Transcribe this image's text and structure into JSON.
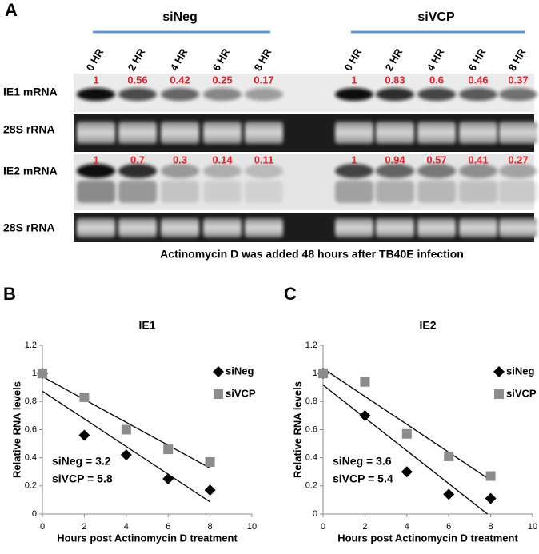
{
  "panel_a": {
    "label": "A",
    "groups": [
      {
        "name": "siNeg",
        "lanes": [
          "0 HR",
          "2 HR",
          "4 HR",
          "6 HR",
          "8 HR"
        ],
        "ie1_levels": [
          1,
          0.56,
          0.42,
          0.25,
          0.17
        ],
        "ie2_levels": [
          1,
          0.7,
          0.3,
          0.14,
          0.11
        ]
      },
      {
        "name": "siVCP",
        "lanes": [
          "0 HR",
          "2 HR",
          "4 HR",
          "6 HR",
          "8 HR"
        ],
        "ie1_levels": [
          1,
          0.83,
          0.6,
          0.46,
          0.37
        ],
        "ie2_levels": [
          1,
          0.94,
          0.57,
          0.41,
          0.27
        ]
      }
    ],
    "row_labels": [
      "IE1 mRNA",
      "28S rRNA",
      "IE2 mRNA",
      "28S rRNA"
    ],
    "caption": "Actinomycin D was added 48 hours after TB40E infection"
  },
  "chart_data": [
    {
      "type": "scatter",
      "panel_label": "B",
      "title": "IE1",
      "x_label": "Hours post Actinomycin D treatment",
      "y_label": "Relative RNA levels",
      "xlim": [
        0,
        10
      ],
      "xticks": [
        0,
        2,
        4,
        6,
        8,
        10
      ],
      "ylim": [
        0,
        1.2
      ],
      "yticks": [
        0,
        0.2,
        0.4,
        0.6,
        0.8,
        1,
        1.2
      ],
      "series": [
        {
          "name": "siNeg",
          "color": "#000000",
          "marker": "diamond",
          "x": [
            0,
            2,
            4,
            6,
            8
          ],
          "values": [
            1,
            0.56,
            0.42,
            0.25,
            0.17
          ]
        },
        {
          "name": "siVCP",
          "color": "#8c8c8c",
          "marker": "square",
          "x": [
            0,
            2,
            4,
            6,
            8
          ],
          "values": [
            1,
            0.83,
            0.6,
            0.46,
            0.37
          ]
        }
      ],
      "trendline": true,
      "legend": "upper right",
      "annotations": [
        "siNeg = 3.2",
        "siVCP = 5.8"
      ]
    },
    {
      "type": "scatter",
      "panel_label": "C",
      "title": "IE2",
      "x_label": "Hours post Actinomycin D treatment",
      "y_label": "Relative RNA levels",
      "xlim": [
        0,
        10
      ],
      "xticks": [
        0,
        2,
        4,
        6,
        8,
        10
      ],
      "ylim": [
        0,
        1.2
      ],
      "yticks": [
        0,
        0.2,
        0.4,
        0.6,
        0.8,
        1,
        1.2
      ],
      "series": [
        {
          "name": "siNeg",
          "color": "#000000",
          "marker": "diamond",
          "x": [
            0,
            2,
            4,
            6,
            8
          ],
          "values": [
            1,
            0.7,
            0.3,
            0.14,
            0.11
          ]
        },
        {
          "name": "siVCP",
          "color": "#8c8c8c",
          "marker": "square",
          "x": [
            0,
            2,
            4,
            6,
            8
          ],
          "values": [
            1,
            0.94,
            0.57,
            0.41,
            0.27
          ]
        }
      ],
      "trendline": true,
      "legend": "upper right",
      "annotations": [
        "siNeg = 3.6",
        "siVCP = 5.4"
      ]
    }
  ]
}
